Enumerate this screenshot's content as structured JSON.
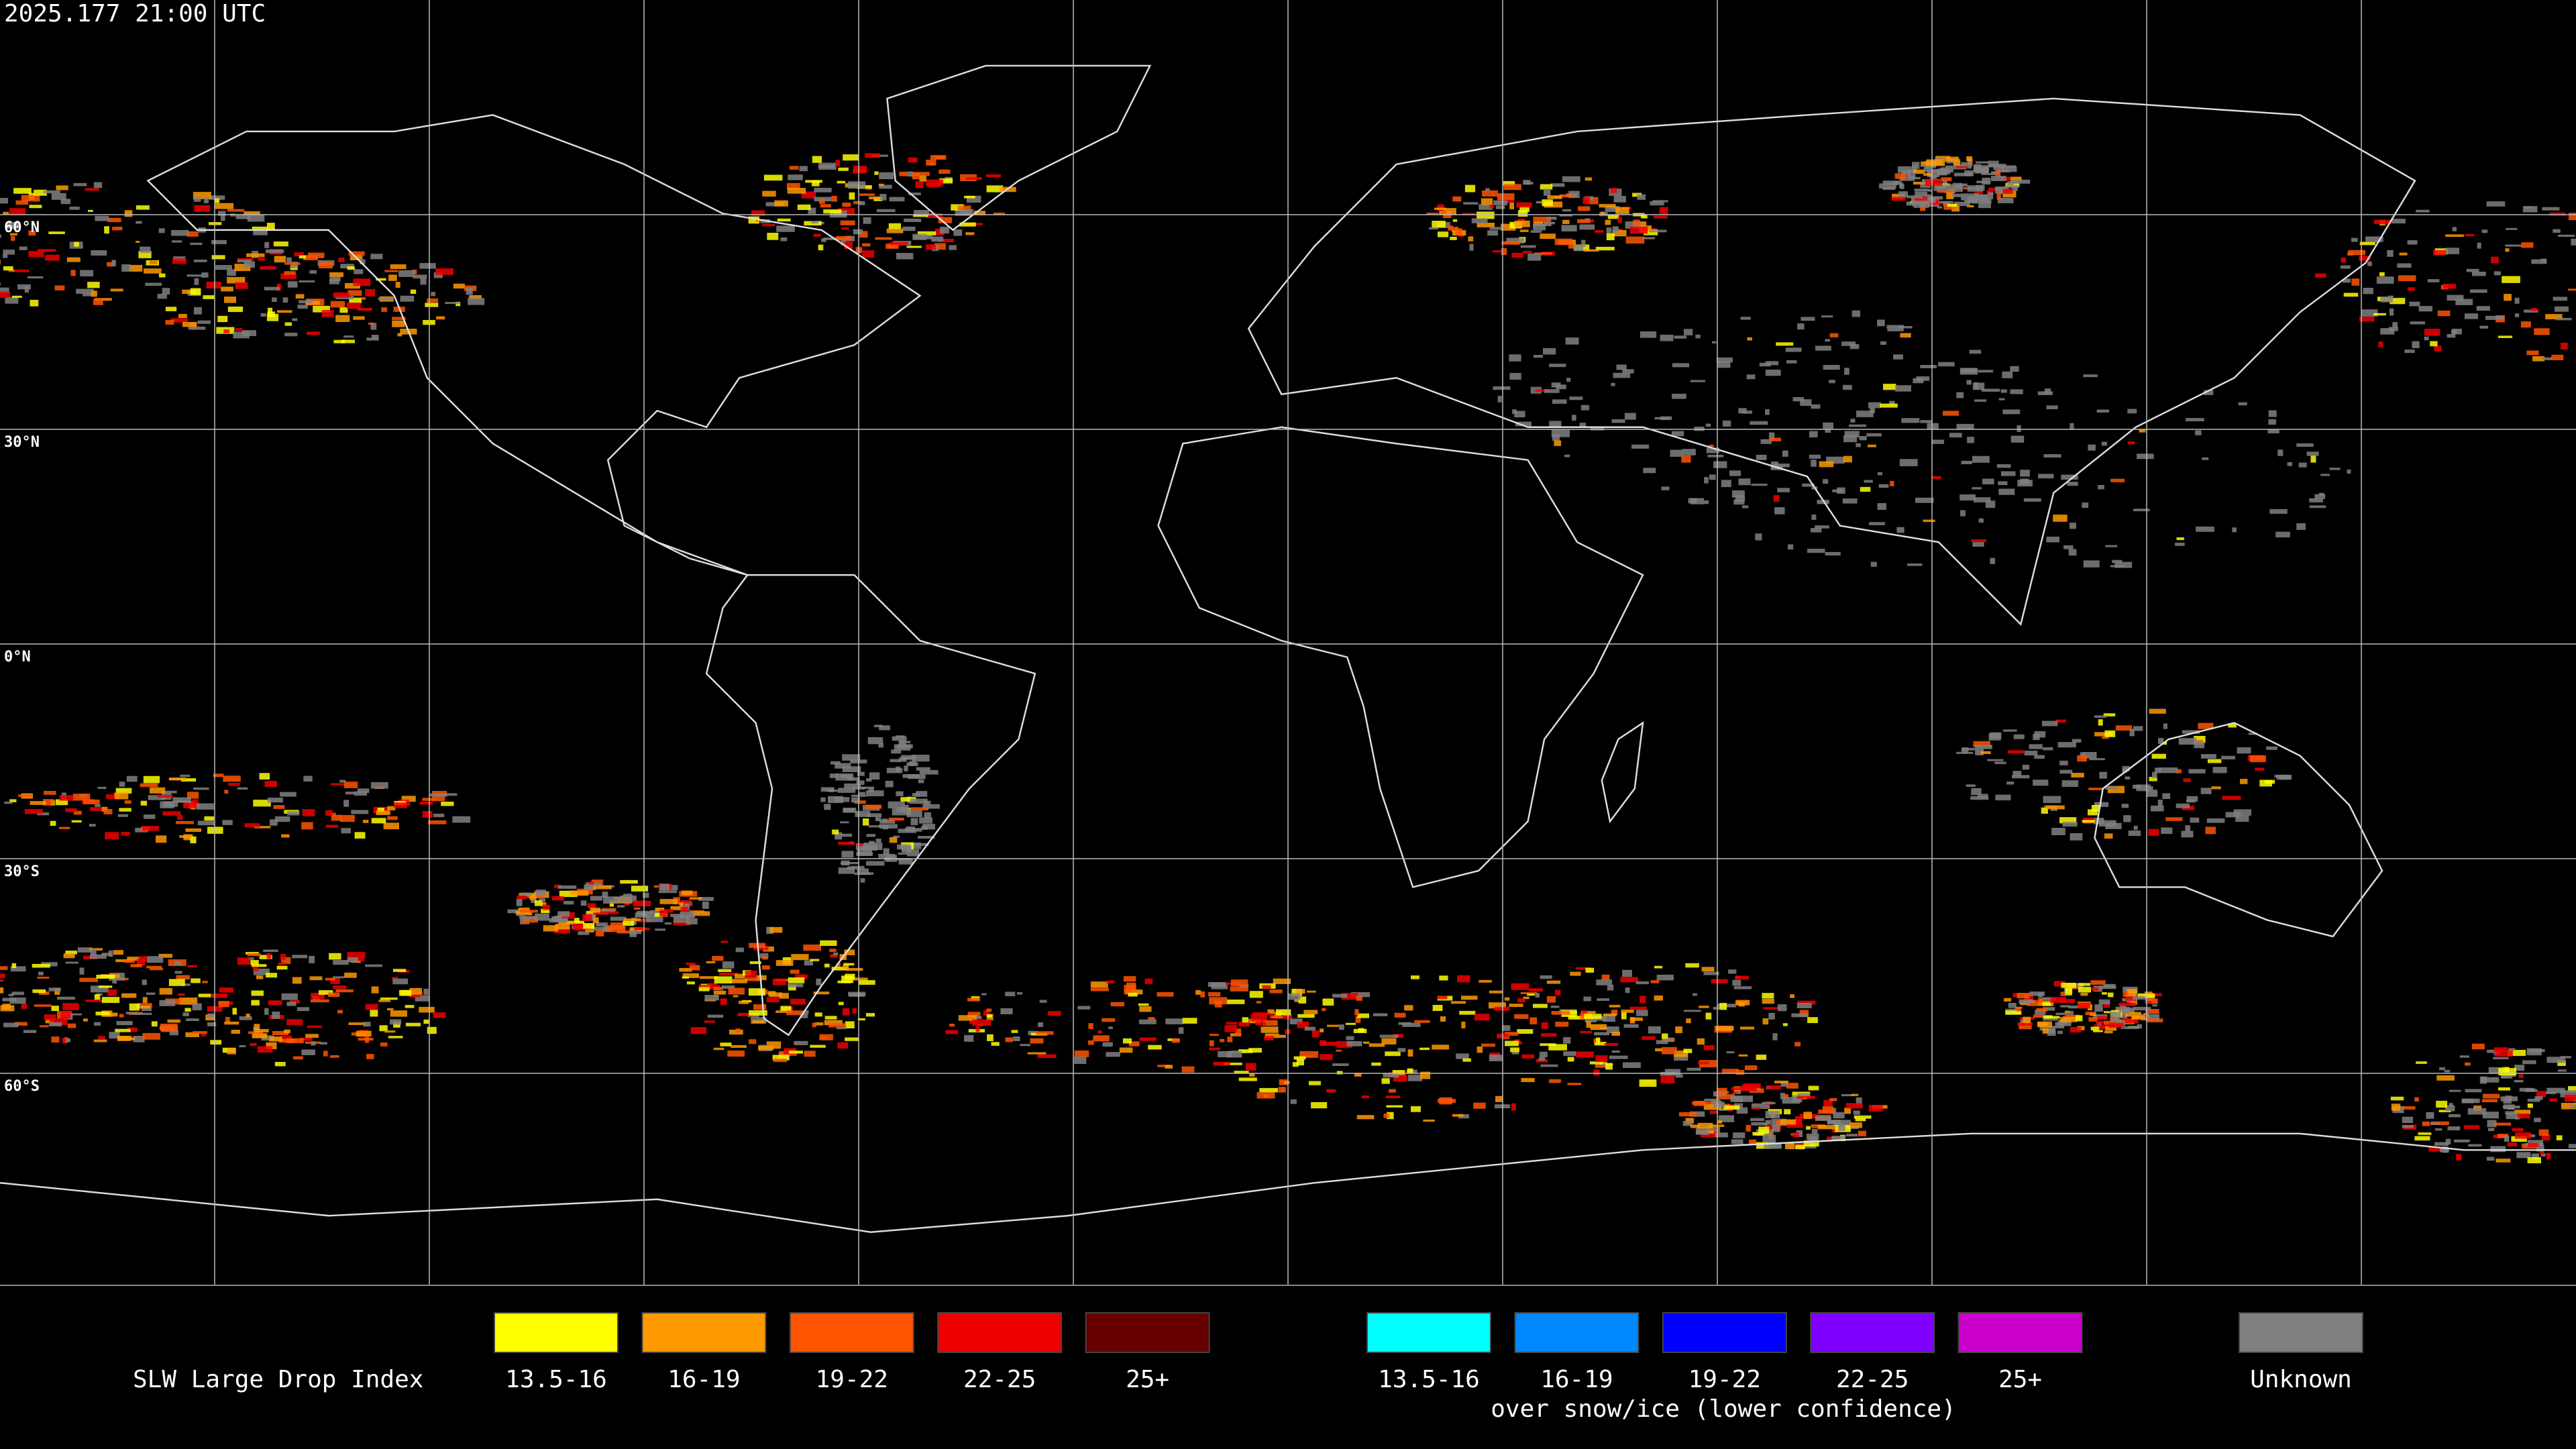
{
  "header": {
    "timestamp": "2025.177 21:00 UTC"
  },
  "map": {
    "latitude_labels": [
      "60°N",
      "30°N",
      "0°N",
      "30°S",
      "60°S"
    ]
  },
  "legend": {
    "title": "SLW Large Drop Index",
    "primary": [
      {
        "label": "13.5-16",
        "color": "#ffff00"
      },
      {
        "label": "16-19",
        "color": "#ff9900"
      },
      {
        "label": "19-22",
        "color": "#ff5500"
      },
      {
        "label": "22-25",
        "color": "#ee0000"
      },
      {
        "label": "25+",
        "color": "#660000"
      }
    ],
    "snow_ice": [
      {
        "label": "13.5-16",
        "color": "#00ffff"
      },
      {
        "label": "16-19",
        "color": "#0088ff"
      },
      {
        "label": "19-22",
        "color": "#0000ff"
      },
      {
        "label": "22-25",
        "color": "#7f00ff"
      },
      {
        "label": "25+",
        "color": "#cc00cc"
      }
    ],
    "snow_ice_caption": "over snow/ice (lower confidence)",
    "unknown": {
      "label": "Unknown",
      "color": "#808080"
    }
  }
}
